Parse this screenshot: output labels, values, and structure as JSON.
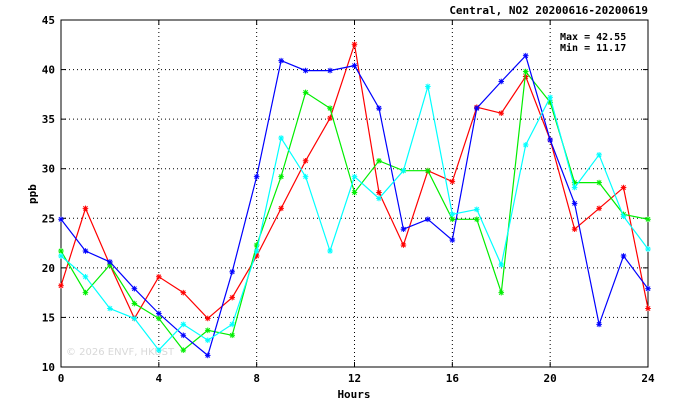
{
  "chart_data": {
    "type": "line",
    "title": "Central, NO2 20200616-20200619",
    "xlabel": "Hours",
    "ylabel": "ppb",
    "xlim": [
      0,
      24
    ],
    "ylim": [
      10,
      45
    ],
    "xticks": [
      0,
      4,
      8,
      12,
      16,
      20,
      24
    ],
    "yticks": [
      10,
      15,
      20,
      25,
      30,
      35,
      40,
      45
    ],
    "grid": true,
    "stats": {
      "max": "Max = 42.55",
      "min": "Min = 11.17"
    },
    "watermark": "© 2026 ENVF, HKUST",
    "x": [
      0,
      1,
      2,
      3,
      4,
      5,
      6,
      7,
      8,
      9,
      10,
      11,
      12,
      13,
      14,
      15,
      16,
      17,
      18,
      19,
      20,
      21,
      22,
      23,
      24
    ],
    "series": [
      {
        "color": "#ff0000",
        "values": [
          18.2,
          26.0,
          20.3,
          14.9,
          19.1,
          17.5,
          14.9,
          17.0,
          21.2,
          26.0,
          30.8,
          35.1,
          42.55,
          27.6,
          22.3,
          29.8,
          28.7,
          36.2,
          35.6,
          39.3,
          32.9,
          23.9,
          26.0,
          28.1,
          15.9
        ]
      },
      {
        "color": "#00ee00",
        "values": [
          21.7,
          17.5,
          20.3,
          16.4,
          14.9,
          11.7,
          13.7,
          13.2,
          22.3,
          29.2,
          37.7,
          36.1,
          27.6,
          30.8,
          29.8,
          29.8,
          24.9,
          24.9,
          17.5,
          39.8,
          36.7,
          28.6,
          28.6,
          25.4,
          24.9
        ]
      },
      {
        "color": "#0000ff",
        "values": [
          24.9,
          21.7,
          20.6,
          17.9,
          15.4,
          13.2,
          11.17,
          19.6,
          29.2,
          40.9,
          39.9,
          39.9,
          40.4,
          36.1,
          23.9,
          24.9,
          22.8,
          36.1,
          38.8,
          41.4,
          32.9,
          26.5,
          14.3,
          21.2,
          17.9
        ]
      },
      {
        "color": "#00ffff",
        "values": [
          21.2,
          19.1,
          15.9,
          14.9,
          11.7,
          14.3,
          12.7,
          14.3,
          21.7,
          33.1,
          29.2,
          21.7,
          29.2,
          27.0,
          29.8,
          38.3,
          25.4,
          25.9,
          20.3,
          32.4,
          37.2,
          28.1,
          31.4,
          25.2,
          21.9
        ]
      }
    ]
  }
}
